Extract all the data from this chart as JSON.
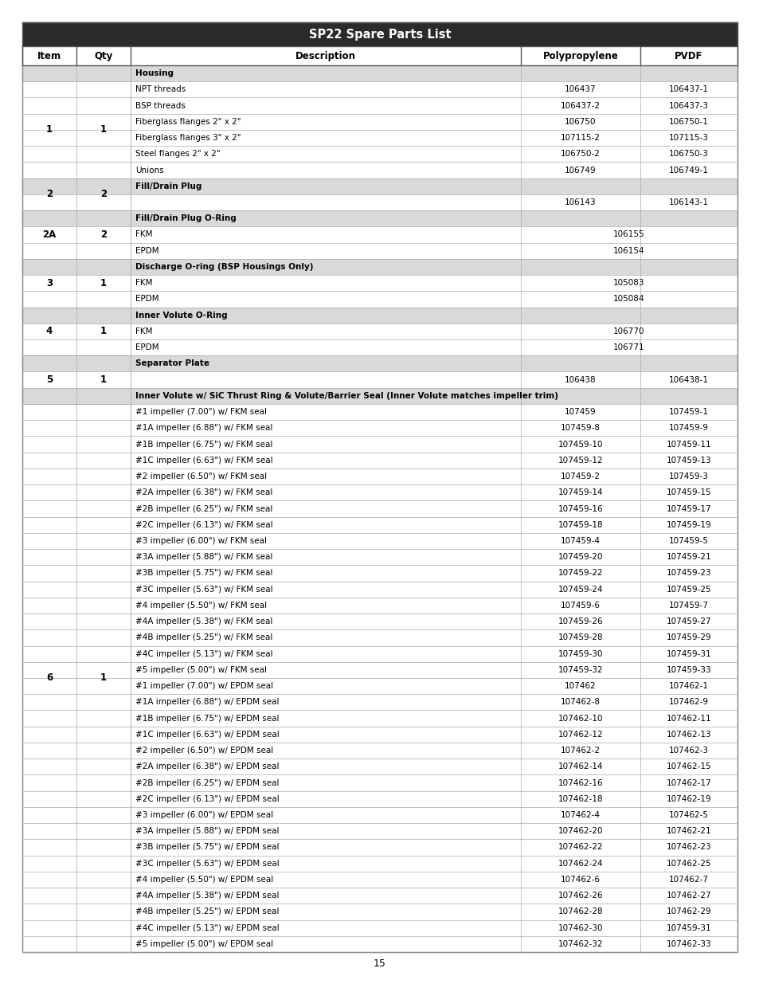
{
  "title": "SP22 Spare Parts List",
  "title_bg": "#2b2b2b",
  "title_color": "#ffffff",
  "header_cols": [
    "Item",
    "Qty",
    "Description",
    "Polypropylene",
    "PVDF"
  ],
  "section_bg": "#d9d9d9",
  "rows": [
    {
      "type": "section",
      "item": "",
      "qty": "",
      "desc": "Housing",
      "poly": "",
      "pvdf": "",
      "span_poly": false
    },
    {
      "type": "data",
      "item": "1",
      "qty": "1",
      "desc": "NPT threads",
      "poly": "106437",
      "pvdf": "106437-1",
      "span_poly": false
    },
    {
      "type": "data",
      "item": "",
      "qty": "",
      "desc": "BSP threads",
      "poly": "106437-2",
      "pvdf": "106437-3",
      "span_poly": false
    },
    {
      "type": "data",
      "item": "",
      "qty": "",
      "desc": "Fiberglass flanges 2\" x 2\"",
      "poly": "106750",
      "pvdf": "106750-1",
      "span_poly": false
    },
    {
      "type": "data",
      "item": "",
      "qty": "",
      "desc": "Fiberglass flanges 3\" x 2\"",
      "poly": "107115-2",
      "pvdf": "107115-3",
      "span_poly": false
    },
    {
      "type": "data",
      "item": "",
      "qty": "",
      "desc": "Steel flanges 2\" x 2\"",
      "poly": "106750-2",
      "pvdf": "106750-3",
      "span_poly": false
    },
    {
      "type": "data",
      "item": "",
      "qty": "",
      "desc": "Unions",
      "poly": "106749",
      "pvdf": "106749-1",
      "span_poly": false
    },
    {
      "type": "section",
      "item": "2",
      "qty": "2",
      "desc": "Fill/Drain Plug",
      "poly": "",
      "pvdf": "",
      "span_poly": false
    },
    {
      "type": "data",
      "item": "",
      "qty": "",
      "desc": "",
      "poly": "106143",
      "pvdf": "106143-1",
      "span_poly": false
    },
    {
      "type": "section",
      "item": "2A",
      "qty": "2",
      "desc": "Fill/Drain Plug O-Ring",
      "poly": "",
      "pvdf": "",
      "span_poly": false
    },
    {
      "type": "data",
      "item": "",
      "qty": "",
      "desc": "FKM",
      "poly": "106155",
      "pvdf": "",
      "span_poly": true
    },
    {
      "type": "data",
      "item": "",
      "qty": "",
      "desc": "EPDM",
      "poly": "106154",
      "pvdf": "",
      "span_poly": true
    },
    {
      "type": "section",
      "item": "3",
      "qty": "1",
      "desc": "Discharge O-ring (BSP Housings Only)",
      "poly": "",
      "pvdf": "",
      "span_poly": false
    },
    {
      "type": "data",
      "item": "",
      "qty": "",
      "desc": "FKM",
      "poly": "105083",
      "pvdf": "",
      "span_poly": true
    },
    {
      "type": "data",
      "item": "",
      "qty": "",
      "desc": "EPDM",
      "poly": "105084",
      "pvdf": "",
      "span_poly": true
    },
    {
      "type": "section",
      "item": "4",
      "qty": "1",
      "desc": "Inner Volute O-Ring",
      "poly": "",
      "pvdf": "",
      "span_poly": false
    },
    {
      "type": "data",
      "item": "",
      "qty": "",
      "desc": "FKM",
      "poly": "106770",
      "pvdf": "",
      "span_poly": true
    },
    {
      "type": "data",
      "item": "",
      "qty": "",
      "desc": "EPDM",
      "poly": "106771",
      "pvdf": "",
      "span_poly": true
    },
    {
      "type": "section",
      "item": "5",
      "qty": "1",
      "desc": "Separator Plate",
      "poly": "",
      "pvdf": "",
      "span_poly": false
    },
    {
      "type": "data",
      "item": "",
      "qty": "",
      "desc": "",
      "poly": "106438",
      "pvdf": "106438-1",
      "span_poly": false
    },
    {
      "type": "section",
      "item": "",
      "qty": "",
      "desc": "Inner Volute w/ SiC Thrust Ring & Volute/Barrier Seal (Inner Volute matches impeller trim)",
      "poly": "",
      "pvdf": "",
      "span_poly": false
    },
    {
      "type": "data",
      "item": "6",
      "qty": "1",
      "desc": "#1 impeller (7.00\") w/ FKM seal",
      "poly": "107459",
      "pvdf": "107459-1",
      "span_poly": false
    },
    {
      "type": "data",
      "item": "",
      "qty": "",
      "desc": "#1A impeller (6.88\") w/ FKM seal",
      "poly": "107459-8",
      "pvdf": "107459-9",
      "span_poly": false
    },
    {
      "type": "data",
      "item": "",
      "qty": "",
      "desc": "#1B impeller (6.75\") w/ FKM seal",
      "poly": "107459-10",
      "pvdf": "107459-11",
      "span_poly": false
    },
    {
      "type": "data",
      "item": "",
      "qty": "",
      "desc": "#1C impeller (6.63\") w/ FKM seal",
      "poly": "107459-12",
      "pvdf": "107459-13",
      "span_poly": false
    },
    {
      "type": "data",
      "item": "",
      "qty": "",
      "desc": "#2 impeller (6.50\") w/ FKM seal",
      "poly": "107459-2",
      "pvdf": "107459-3",
      "span_poly": false
    },
    {
      "type": "data",
      "item": "",
      "qty": "",
      "desc": "#2A impeller (6.38\") w/ FKM seal",
      "poly": "107459-14",
      "pvdf": "107459-15",
      "span_poly": false
    },
    {
      "type": "data",
      "item": "",
      "qty": "",
      "desc": "#2B impeller (6.25\") w/ FKM seal",
      "poly": "107459-16",
      "pvdf": "107459-17",
      "span_poly": false
    },
    {
      "type": "data",
      "item": "",
      "qty": "",
      "desc": "#2C impeller (6.13\") w/ FKM seal",
      "poly": "107459-18",
      "pvdf": "107459-19",
      "span_poly": false
    },
    {
      "type": "data",
      "item": "",
      "qty": "",
      "desc": "#3 impeller (6.00\") w/ FKM seal",
      "poly": "107459-4",
      "pvdf": "107459-5",
      "span_poly": false
    },
    {
      "type": "data",
      "item": "",
      "qty": "",
      "desc": "#3A impeller (5.88\") w/ FKM seal",
      "poly": "107459-20",
      "pvdf": "107459-21",
      "span_poly": false
    },
    {
      "type": "data",
      "item": "",
      "qty": "",
      "desc": "#3B impeller (5.75\") w/ FKM seal",
      "poly": "107459-22",
      "pvdf": "107459-23",
      "span_poly": false
    },
    {
      "type": "data",
      "item": "",
      "qty": "",
      "desc": "#3C impeller (5.63\") w/ FKM seal",
      "poly": "107459-24",
      "pvdf": "107459-25",
      "span_poly": false
    },
    {
      "type": "data",
      "item": "",
      "qty": "",
      "desc": "#4 impeller (5.50\") w/ FKM seal",
      "poly": "107459-6",
      "pvdf": "107459-7",
      "span_poly": false
    },
    {
      "type": "data",
      "item": "",
      "qty": "",
      "desc": "#4A impeller (5.38\") w/ FKM seal",
      "poly": "107459-26",
      "pvdf": "107459-27",
      "span_poly": false
    },
    {
      "type": "data",
      "item": "",
      "qty": "",
      "desc": "#4B impeller (5.25\") w/ FKM seal",
      "poly": "107459-28",
      "pvdf": "107459-29",
      "span_poly": false
    },
    {
      "type": "data",
      "item": "",
      "qty": "",
      "desc": "#4C impeller (5.13\") w/ FKM seal",
      "poly": "107459-30",
      "pvdf": "107459-31",
      "span_poly": false
    },
    {
      "type": "data",
      "item": "",
      "qty": "",
      "desc": "#5 impeller (5.00\") w/ FKM seal",
      "poly": "107459-32",
      "pvdf": "107459-33",
      "span_poly": false
    },
    {
      "type": "data",
      "item": "",
      "qty": "",
      "desc": "#1 impeller (7.00\") w/ EPDM seal",
      "poly": "107462",
      "pvdf": "107462-1",
      "span_poly": false
    },
    {
      "type": "data",
      "item": "",
      "qty": "",
      "desc": "#1A impeller (6.88\") w/ EPDM seal",
      "poly": "107462-8",
      "pvdf": "107462-9",
      "span_poly": false
    },
    {
      "type": "data",
      "item": "",
      "qty": "",
      "desc": "#1B impeller (6.75\") w/ EPDM seal",
      "poly": "107462-10",
      "pvdf": "107462-11",
      "span_poly": false
    },
    {
      "type": "data",
      "item": "",
      "qty": "",
      "desc": "#1C impeller (6.63\") w/ EPDM seal",
      "poly": "107462-12",
      "pvdf": "107462-13",
      "span_poly": false
    },
    {
      "type": "data",
      "item": "",
      "qty": "",
      "desc": "#2 impeller (6.50\") w/ EPDM seal",
      "poly": "107462-2",
      "pvdf": "107462-3",
      "span_poly": false
    },
    {
      "type": "data",
      "item": "",
      "qty": "",
      "desc": "#2A impeller (6.38\") w/ EPDM seal",
      "poly": "107462-14",
      "pvdf": "107462-15",
      "span_poly": false
    },
    {
      "type": "data",
      "item": "",
      "qty": "",
      "desc": "#2B impeller (6.25\") w/ EPDM seal",
      "poly": "107462-16",
      "pvdf": "107462-17",
      "span_poly": false
    },
    {
      "type": "data",
      "item": "",
      "qty": "",
      "desc": "#2C impeller (6.13\") w/ EPDM seal",
      "poly": "107462-18",
      "pvdf": "107462-19",
      "span_poly": false
    },
    {
      "type": "data",
      "item": "",
      "qty": "",
      "desc": "#3 impeller (6.00\") w/ EPDM seal",
      "poly": "107462-4",
      "pvdf": "107462-5",
      "span_poly": false
    },
    {
      "type": "data",
      "item": "",
      "qty": "",
      "desc": "#3A impeller (5.88\") w/ EPDM seal",
      "poly": "107462-20",
      "pvdf": "107462-21",
      "span_poly": false
    },
    {
      "type": "data",
      "item": "",
      "qty": "",
      "desc": "#3B impeller (5.75\") w/ EPDM seal",
      "poly": "107462-22",
      "pvdf": "107462-23",
      "span_poly": false
    },
    {
      "type": "data",
      "item": "",
      "qty": "",
      "desc": "#3C impeller (5.63\") w/ EPDM seal",
      "poly": "107462-24",
      "pvdf": "107462-25",
      "span_poly": false
    },
    {
      "type": "data",
      "item": "",
      "qty": "",
      "desc": "#4 impeller (5.50\") w/ EPDM seal",
      "poly": "107462-6",
      "pvdf": "107462-7",
      "span_poly": false
    },
    {
      "type": "data",
      "item": "",
      "qty": "",
      "desc": "#4A impeller (5.38\") w/ EPDM seal",
      "poly": "107462-26",
      "pvdf": "107462-27",
      "span_poly": false
    },
    {
      "type": "data",
      "item": "",
      "qty": "",
      "desc": "#4B impeller (5.25\") w/ EPDM seal",
      "poly": "107462-28",
      "pvdf": "107462-29",
      "span_poly": false
    },
    {
      "type": "data",
      "item": "",
      "qty": "",
      "desc": "#4C impeller (5.13\") w/ EPDM seal",
      "poly": "107462-30",
      "pvdf": "107459-31",
      "span_poly": false
    },
    {
      "type": "data",
      "item": "",
      "qty": "",
      "desc": "#5 impeller (5.00\") w/ EPDM seal",
      "poly": "107462-32",
      "pvdf": "107462-33",
      "span_poly": false
    }
  ],
  "page_number": "15"
}
